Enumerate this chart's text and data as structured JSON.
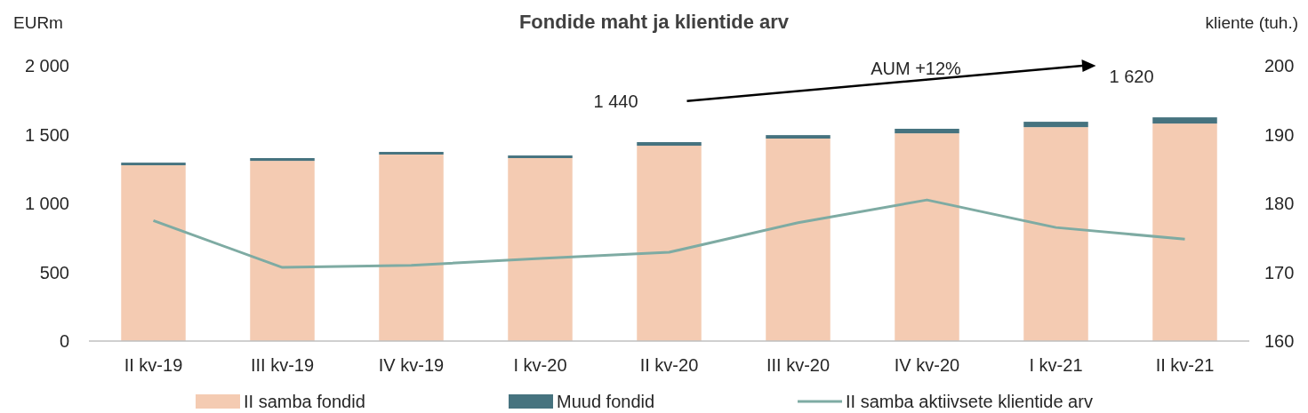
{
  "chart_data": {
    "type": "bar",
    "title": "Fondide maht ja klientide arv",
    "ylabel": "EURm",
    "y2label": "kliente (tuh.)",
    "categories": [
      "II kv-19",
      "III kv-19",
      "IV kv-19",
      "I kv-20",
      "II kv-20",
      "III kv-20",
      "IV kv-20",
      "I kv-21",
      "II kv-21"
    ],
    "stacked": true,
    "series": [
      {
        "name": "II samba fondid",
        "color": "#f4cbb2",
        "values": [
          1277,
          1309,
          1355,
          1329,
          1419,
          1471,
          1509,
          1554,
          1580
        ]
      },
      {
        "name": "Muud fondid",
        "color": "#46737f",
        "values": [
          19,
          20,
          19,
          19,
          26,
          25,
          33,
          39,
          45
        ]
      },
      {
        "name": "II samba aktiivsete klientide arv",
        "type": "line",
        "axis": "y2",
        "color": "#7eaba3",
        "values": [
          177.5,
          170.7,
          171.0,
          172.0,
          172.9,
          177.2,
          180.5,
          176.5,
          174.8
        ]
      }
    ],
    "ylim": [
      0,
      2000
    ],
    "yticks": [
      0,
      500,
      {
        "value": 1000,
        "label": "1 000"
      },
      {
        "value": 1500,
        "label": "1 500"
      },
      {
        "value": 2000,
        "label": "2 000"
      }
    ],
    "y2lim": [
      160,
      200
    ],
    "y2ticks": [
      160,
      170,
      180,
      190,
      200
    ],
    "annotations": [
      {
        "text": "1 440",
        "x": "II kv-20",
        "y": 1440
      },
      {
        "text": "1 620",
        "x": "II kv-21",
        "y": 1620
      },
      "AUM +12%"
    ],
    "legend": "bottom",
    "grid": false,
    "marker": "none"
  }
}
